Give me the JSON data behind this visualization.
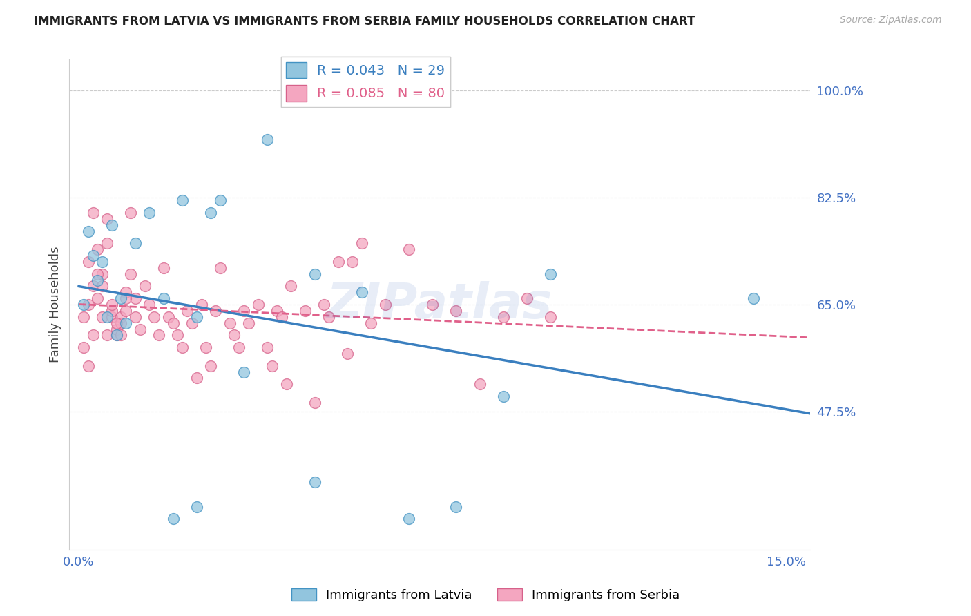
{
  "title": "IMMIGRANTS FROM LATVIA VS IMMIGRANTS FROM SERBIA FAMILY HOUSEHOLDS CORRELATION CHART",
  "source": "Source: ZipAtlas.com",
  "ylabel": "Family Households",
  "xlim": [
    -0.002,
    0.155
  ],
  "ylim": [
    0.25,
    1.05
  ],
  "yticks": [
    0.475,
    0.65,
    0.825,
    1.0
  ],
  "ytick_labels": [
    "47.5%",
    "65.0%",
    "82.5%",
    "100.0%"
  ],
  "xticks": [
    0.0,
    0.05,
    0.1,
    0.15
  ],
  "xtick_labels": [
    "0.0%",
    "",
    "",
    "15.0%"
  ],
  "watermark": "ZIPatlas",
  "title_color": "#222222",
  "grid_color": "#cccccc",
  "latvia_color": "#92c5de",
  "serbia_color": "#f4a6c0",
  "latvia_edge_color": "#4393c3",
  "serbia_edge_color": "#d6618a",
  "latvia_trend_color": "#3a7fbf",
  "serbia_trend_color": "#e0608a",
  "axis_label_color": "#4472c4",
  "legend_text_color_1": "#3a7fbf",
  "legend_text_color_2": "#e0608a",
  "latvia_x": [
    0.001,
    0.002,
    0.003,
    0.004,
    0.005,
    0.006,
    0.007,
    0.008,
    0.009,
    0.01,
    0.012,
    0.015,
    0.018,
    0.022,
    0.028,
    0.04,
    0.025,
    0.03,
    0.02,
    0.025,
    0.05,
    0.06,
    0.07,
    0.08,
    0.09,
    0.1,
    0.143,
    0.05,
    0.035
  ],
  "latvia_y": [
    0.65,
    0.77,
    0.73,
    0.69,
    0.72,
    0.63,
    0.78,
    0.6,
    0.66,
    0.62,
    0.75,
    0.8,
    0.66,
    0.82,
    0.8,
    0.92,
    0.63,
    0.82,
    0.3,
    0.32,
    0.7,
    0.67,
    0.3,
    0.32,
    0.5,
    0.7,
    0.66,
    0.36,
    0.54
  ],
  "serbia_x": [
    0.001,
    0.001,
    0.002,
    0.002,
    0.003,
    0.003,
    0.004,
    0.004,
    0.005,
    0.005,
    0.006,
    0.006,
    0.007,
    0.007,
    0.008,
    0.008,
    0.009,
    0.009,
    0.01,
    0.01,
    0.011,
    0.012,
    0.012,
    0.013,
    0.014,
    0.015,
    0.016,
    0.017,
    0.018,
    0.019,
    0.02,
    0.021,
    0.022,
    0.023,
    0.024,
    0.025,
    0.026,
    0.027,
    0.028,
    0.029,
    0.03,
    0.032,
    0.033,
    0.034,
    0.035,
    0.036,
    0.038,
    0.04,
    0.041,
    0.042,
    0.043,
    0.044,
    0.05,
    0.052,
    0.055,
    0.057,
    0.06,
    0.065,
    0.07,
    0.075,
    0.08,
    0.085,
    0.09,
    0.095,
    0.1,
    0.045,
    0.048,
    0.053,
    0.058,
    0.062,
    0.002,
    0.003,
    0.004,
    0.005,
    0.006,
    0.007,
    0.008,
    0.009,
    0.01,
    0.011
  ],
  "serbia_y": [
    0.63,
    0.58,
    0.72,
    0.65,
    0.68,
    0.6,
    0.66,
    0.74,
    0.63,
    0.7,
    0.6,
    0.79,
    0.63,
    0.64,
    0.6,
    0.61,
    0.63,
    0.62,
    0.64,
    0.67,
    0.8,
    0.66,
    0.63,
    0.61,
    0.68,
    0.65,
    0.63,
    0.6,
    0.71,
    0.63,
    0.62,
    0.6,
    0.58,
    0.64,
    0.62,
    0.53,
    0.65,
    0.58,
    0.55,
    0.64,
    0.71,
    0.62,
    0.6,
    0.58,
    0.64,
    0.62,
    0.65,
    0.58,
    0.55,
    0.64,
    0.63,
    0.52,
    0.49,
    0.65,
    0.72,
    0.57,
    0.75,
    0.65,
    0.74,
    0.65,
    0.64,
    0.52,
    0.63,
    0.66,
    0.63,
    0.68,
    0.64,
    0.63,
    0.72,
    0.62,
    0.55,
    0.8,
    0.7,
    0.68,
    0.75,
    0.65,
    0.62,
    0.6,
    0.66,
    0.7
  ]
}
